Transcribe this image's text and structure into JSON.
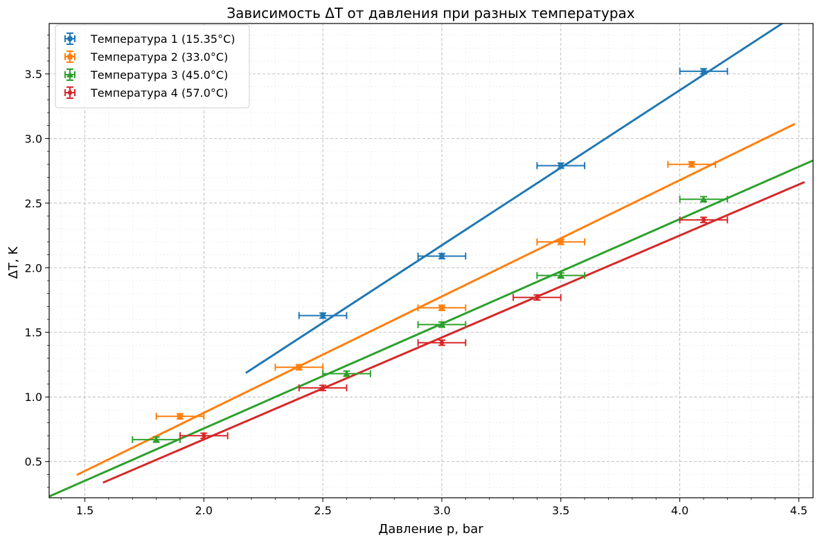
{
  "chart_data": {
    "type": "scatter",
    "title": "Зависимость ΔT от давления при разных температурах",
    "xlabel": "Давление p, bar",
    "ylabel": "ΔT, K",
    "xlim": [
      1.35,
      4.56
    ],
    "ylim": [
      0.22,
      3.89
    ],
    "x_ticks": [
      "1.5",
      "2.0",
      "2.5",
      "3.0",
      "3.5",
      "4.0",
      "4.5"
    ],
    "y_ticks": [
      "0.5",
      "1.0",
      "1.5",
      "2.0",
      "2.5",
      "3.0",
      "3.5"
    ],
    "grid": true,
    "legend_position": "top-left",
    "series": [
      {
        "name": "Температура 1 (15.35°C)",
        "color": "#1f77b4",
        "marker": "circle",
        "points": [
          {
            "x": 2.5,
            "y": 1.63,
            "xerr": 0.1,
            "yerr": 0.02
          },
          {
            "x": 3.0,
            "y": 2.09,
            "xerr": 0.1,
            "yerr": 0.02
          },
          {
            "x": 3.5,
            "y": 2.79,
            "xerr": 0.1,
            "yerr": 0.02
          },
          {
            "x": 4.1,
            "y": 3.52,
            "xerr": 0.1,
            "yerr": 0.02
          }
        ],
        "fit": {
          "x": [
            2.18,
            4.43
          ],
          "y": [
            1.19,
            3.89
          ]
        }
      },
      {
        "name": "Температура 2 (33.0°C)",
        "color": "#ff7f0e",
        "marker": "pentagon",
        "points": [
          {
            "x": 1.9,
            "y": 0.85,
            "xerr": 0.1,
            "yerr": 0.02
          },
          {
            "x": 2.4,
            "y": 1.23,
            "xerr": 0.1,
            "yerr": 0.02
          },
          {
            "x": 3.0,
            "y": 1.69,
            "xerr": 0.1,
            "yerr": 0.02
          },
          {
            "x": 3.5,
            "y": 2.2,
            "xerr": 0.1,
            "yerr": 0.02
          },
          {
            "x": 4.05,
            "y": 2.8,
            "xerr": 0.1,
            "yerr": 0.02
          }
        ],
        "fit": {
          "x": [
            1.47,
            4.48
          ],
          "y": [
            0.4,
            3.11
          ]
        }
      },
      {
        "name": "Температура 3 (45.0°C)",
        "color": "#2ca02c",
        "marker": "triangle",
        "points": [
          {
            "x": 1.8,
            "y": 0.67,
            "xerr": 0.1,
            "yerr": 0.02
          },
          {
            "x": 2.6,
            "y": 1.18,
            "xerr": 0.1,
            "yerr": 0.02
          },
          {
            "x": 3.0,
            "y": 1.56,
            "xerr": 0.1,
            "yerr": 0.02
          },
          {
            "x": 3.5,
            "y": 1.94,
            "xerr": 0.1,
            "yerr": 0.02
          },
          {
            "x": 4.1,
            "y": 2.53,
            "xerr": 0.1,
            "yerr": 0.02
          }
        ],
        "fit": {
          "x": [
            1.35,
            4.56
          ],
          "y": [
            0.23,
            2.83
          ]
        }
      },
      {
        "name": "Температура 4 (57.0°C)",
        "color": "#d62728",
        "marker": "diamond",
        "points": [
          {
            "x": 2.0,
            "y": 0.7,
            "xerr": 0.1,
            "yerr": 0.02
          },
          {
            "x": 2.5,
            "y": 1.07,
            "xerr": 0.1,
            "yerr": 0.02
          },
          {
            "x": 3.0,
            "y": 1.42,
            "xerr": 0.1,
            "yerr": 0.02
          },
          {
            "x": 3.4,
            "y": 1.77,
            "xerr": 0.1,
            "yerr": 0.02
          },
          {
            "x": 4.1,
            "y": 2.37,
            "xerr": 0.1,
            "yerr": 0.02
          }
        ],
        "fit": {
          "x": [
            1.58,
            4.52
          ],
          "y": [
            0.34,
            2.66
          ]
        }
      }
    ]
  }
}
